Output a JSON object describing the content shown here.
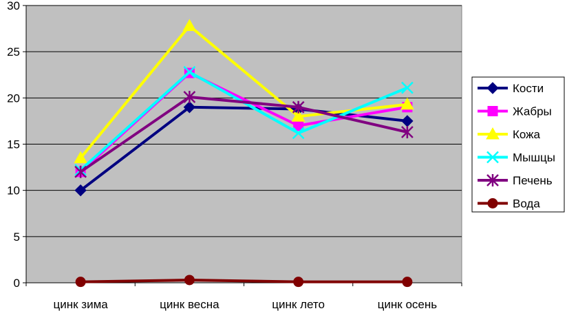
{
  "chart_data": {
    "type": "line",
    "categories": [
      "цинк зима",
      "цинк весна",
      "цинк лето",
      "цинк осень"
    ],
    "ylim": [
      0,
      30
    ],
    "yticks": [
      0,
      5,
      10,
      15,
      20,
      25,
      30
    ],
    "grid": true,
    "plot_background": "#c0c0c0",
    "legend_position": "right",
    "series": [
      {
        "name": "Кости",
        "values": [
          10.0,
          19.0,
          18.8,
          17.5
        ],
        "color": "#000080",
        "marker": "diamond"
      },
      {
        "name": "Жабры",
        "values": [
          12.0,
          22.7,
          17.0,
          19.0
        ],
        "color": "#ff00ff",
        "marker": "square"
      },
      {
        "name": "Кожа",
        "values": [
          13.5,
          27.8,
          18.0,
          19.3
        ],
        "color": "#ffff00",
        "marker": "triangle"
      },
      {
        "name": "Мышцы",
        "values": [
          12.2,
          22.8,
          16.2,
          21.1
        ],
        "color": "#00ffff",
        "marker": "x"
      },
      {
        "name": "Печень",
        "values": [
          12.0,
          20.1,
          19.0,
          16.3
        ],
        "color": "#800080",
        "marker": "star"
      },
      {
        "name": "Вода",
        "values": [
          0.1,
          0.3,
          0.1,
          0.1
        ],
        "color": "#800000",
        "marker": "circle"
      }
    ]
  }
}
